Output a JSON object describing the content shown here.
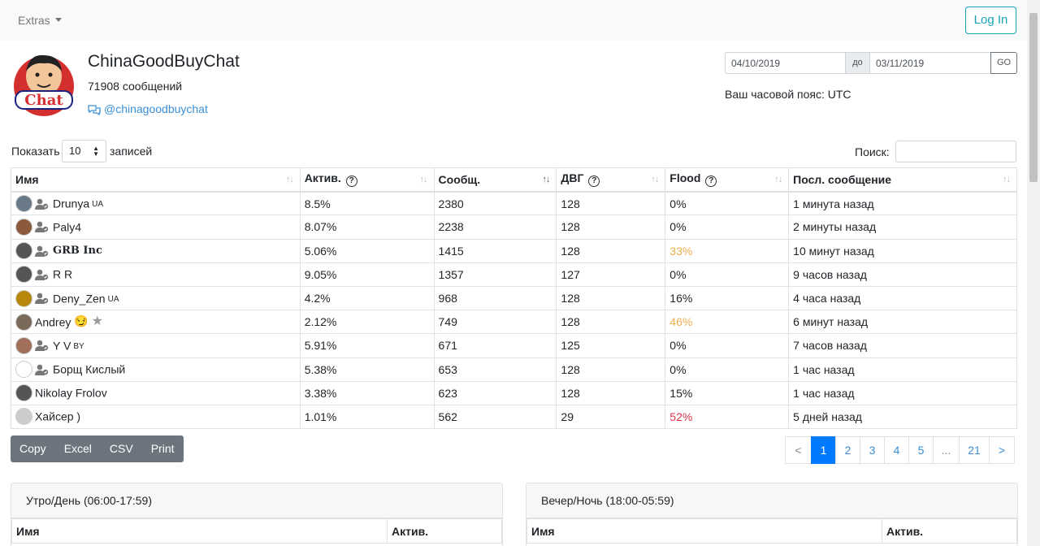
{
  "navbar": {
    "extras_label": "Extras",
    "login_label": "Log In"
  },
  "chat": {
    "title": "ChinaGoodBuyChat",
    "message_count": "71908 сообщений",
    "handle": "@chinagoodbuychat",
    "logo_text": "Chat"
  },
  "date_filter": {
    "from": "04/10/2019",
    "separator": "до",
    "to": "03/11/2019",
    "go_label": "GO"
  },
  "timezone": "Ваш часовой пояс: UTC",
  "table_controls": {
    "show_prefix": "Показать",
    "page_size": "10",
    "show_suffix": "записей",
    "search_label": "Поиск:"
  },
  "columns": [
    "Имя",
    "Актив.",
    "Сообщ.",
    "ДВГ",
    "Flood",
    "Посл. сообщение"
  ],
  "help_icon_glyph": "?",
  "rows": [
    {
      "name": "Drunya",
      "flag": "UA",
      "activity": "8.5%",
      "messages": "2380",
      "dvg": "128",
      "flood": "0%",
      "flood_level": "normal",
      "last": "1 минута назад",
      "avatar_color": "#6a7a8a",
      "show_user_icon": true
    },
    {
      "name": "Paly4",
      "flag": "",
      "activity": "8.07%",
      "messages": "2238",
      "dvg": "128",
      "flood": "0%",
      "flood_level": "normal",
      "last": "2 минуты назад",
      "avatar_color": "#8a5a3a",
      "show_user_icon": true
    },
    {
      "name": "GRB Inc",
      "flag": "",
      "activity": "5.06%",
      "messages": "1415",
      "dvg": "128",
      "flood": "33%",
      "flood_level": "warn",
      "last": "10 минут назад",
      "avatar_color": "#555555",
      "show_user_icon": true,
      "bold": true
    },
    {
      "name": "R R",
      "flag": "",
      "activity": "9.05%",
      "messages": "1357",
      "dvg": "127",
      "flood": "0%",
      "flood_level": "normal",
      "last": "9 часов назад",
      "avatar_color": "#555555",
      "show_user_icon": true
    },
    {
      "name": "Deny_Zen",
      "flag": "UA",
      "activity": "4.2%",
      "messages": "968",
      "dvg": "128",
      "flood": "16%",
      "flood_level": "normal",
      "last": "4 часа назад",
      "avatar_color": "#b8860b",
      "show_user_icon": true
    },
    {
      "name": "Andrey",
      "flag": "",
      "activity": "2.12%",
      "messages": "749",
      "dvg": "128",
      "flood": "46%",
      "flood_level": "warn",
      "last": "6 минут назад",
      "avatar_color": "#7a6a5a",
      "show_user_icon": false,
      "emoji": "😏",
      "star": true
    },
    {
      "name": "Y V",
      "flag": "BY",
      "activity": "5.91%",
      "messages": "671",
      "dvg": "125",
      "flood": "0%",
      "flood_level": "normal",
      "last": "7 часов назад",
      "avatar_color": "#a0705a",
      "show_user_icon": true
    },
    {
      "name": "Борщ Кислый",
      "flag": "",
      "activity": "5.38%",
      "messages": "653",
      "dvg": "128",
      "flood": "0%",
      "flood_level": "normal",
      "last": "1 час назад",
      "avatar_color": "#ffffff",
      "show_user_icon": true
    },
    {
      "name": "Nikolay Frolov",
      "flag": "",
      "activity": "3.38%",
      "messages": "623",
      "dvg": "128",
      "flood": "15%",
      "flood_level": "normal",
      "last": "1 час назад",
      "avatar_color": "#555555",
      "show_user_icon": false
    },
    {
      "name": "Хайсер )",
      "flag": "",
      "activity": "1.01%",
      "messages": "562",
      "dvg": "29",
      "flood": "52%",
      "flood_level": "danger",
      "last": "5 дней назад",
      "avatar_color": "#cccccc",
      "show_user_icon": false
    }
  ],
  "export_buttons": [
    "Copy",
    "Excel",
    "CSV",
    "Print"
  ],
  "pagination": [
    "<",
    "1",
    "2",
    "3",
    "4",
    "5",
    "...",
    "21",
    ">"
  ],
  "pagination_current": "1",
  "cards": [
    {
      "title": "Утро/День (06:00-17:59)",
      "col_name": "Имя",
      "col_activity": "Актив."
    },
    {
      "title": "Вечер/Ночь (18:00-05:59)",
      "col_name": "Имя",
      "col_activity": "Актив."
    }
  ],
  "colors": {
    "link": "#3a8fd6",
    "warn": "#f0ad4e",
    "danger": "#dc3545",
    "primary": "#007bff",
    "info": "#17a2b8",
    "secondary": "#6c757d"
  }
}
